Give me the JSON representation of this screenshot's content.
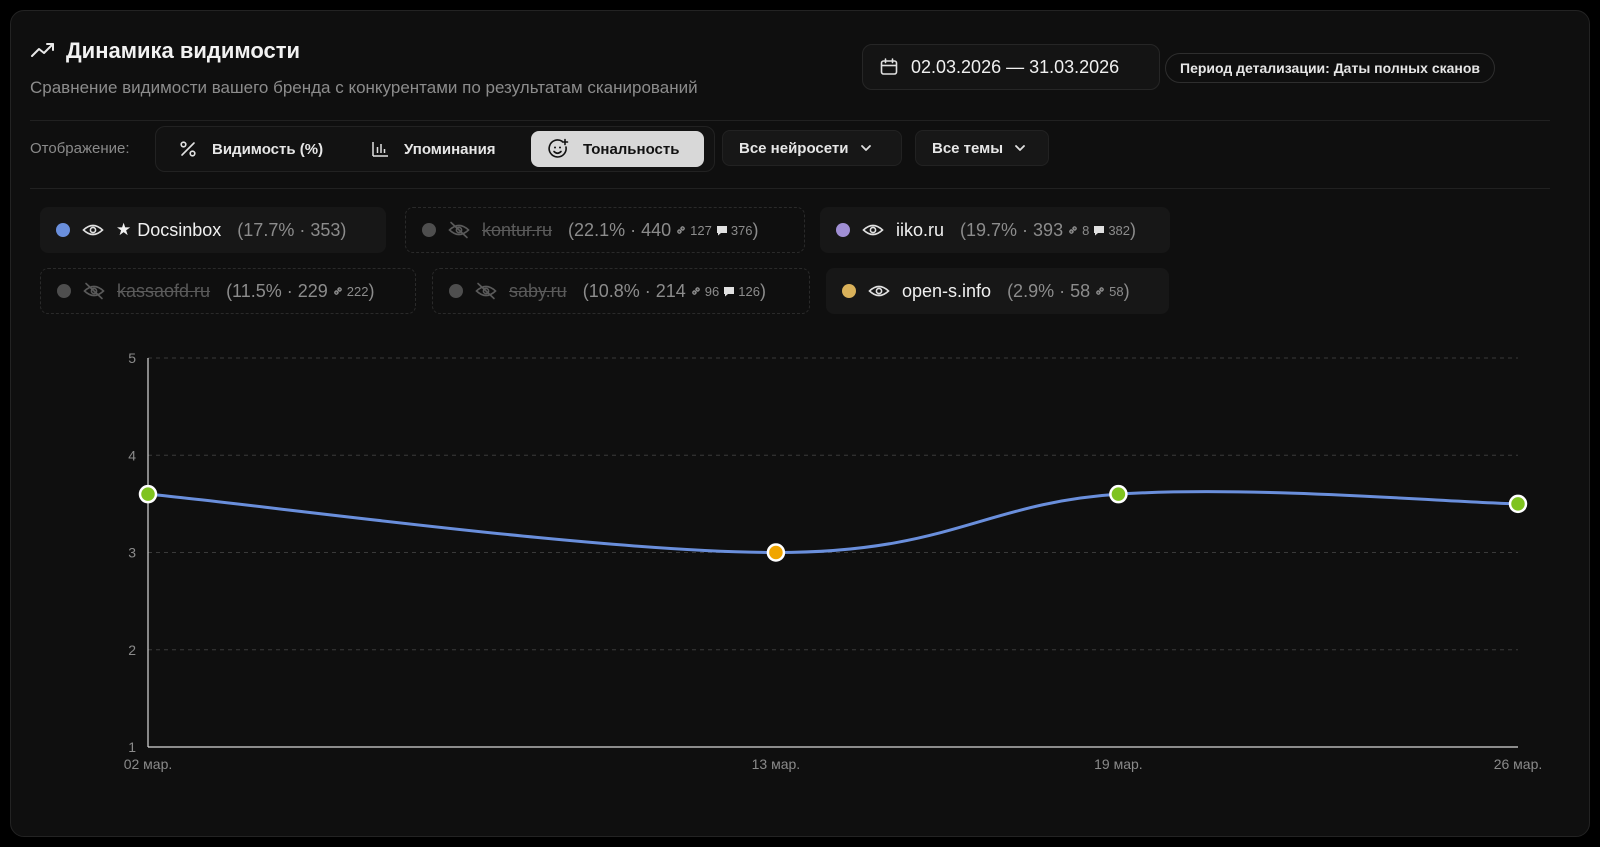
{
  "header": {
    "title": "Динамика видимости",
    "subtitle": "Сравнение видимости вашего бренда с конкурентами по результатам сканирований",
    "date_range": "02.03.2026 — 31.03.2026",
    "period": "Период детализации: Даты полных сканов"
  },
  "toolbar": {
    "display_label": "Отображение:",
    "modes": [
      {
        "label": "Видимость (%)",
        "icon": "percent-icon",
        "active": false
      },
      {
        "label": "Упоминания",
        "icon": "bar-chart-icon",
        "active": false
      },
      {
        "label": "Тональность",
        "icon": "smile-icon",
        "active": true
      }
    ],
    "networks_dropdown": "Все нейросети",
    "topics_dropdown": "Все темы"
  },
  "legend": [
    {
      "name": "Docsinbox",
      "stats": "(17.7% · 353)",
      "links": "",
      "comments": "",
      "color": "#6a8fdc",
      "visible": true,
      "starred": true
    },
    {
      "name": "kontur.ru",
      "stats": "(22.1% · 440",
      "links": "127",
      "comments": "376",
      "color": "#555555",
      "visible": false,
      "starred": false
    },
    {
      "name": "iiko.ru",
      "stats": "(19.7% · 393",
      "links": "8",
      "comments": "382",
      "color": "#a08fd4",
      "visible": true,
      "starred": false
    },
    {
      "name": "kassaofd.ru",
      "stats": "(11.5% · 229",
      "links": "222",
      "comments": "",
      "color": "#555555",
      "visible": false,
      "starred": false
    },
    {
      "name": "saby.ru",
      "stats": "(10.8% · 214",
      "links": "96",
      "comments": "126",
      "color": "#555555",
      "visible": false,
      "starred": false
    },
    {
      "name": "open-s.info",
      "stats": "(2.9% · 58",
      "links": "58",
      "comments": "",
      "color": "#d9b15a",
      "visible": true,
      "starred": false
    }
  ],
  "chart_data": {
    "type": "line",
    "categories": [
      "02 мар.",
      "13 мар.",
      "19 мар.",
      "26 мар."
    ],
    "series": [
      {
        "name": "Docsinbox",
        "values": [
          3.6,
          3.0,
          3.6,
          3.5
        ],
        "point_colors": [
          "#7fc31f",
          "#f0a500",
          "#7fc31f",
          "#7fc31f"
        ],
        "color": "#6a8fdc"
      }
    ],
    "ylim": [
      1,
      5
    ],
    "yticks": [
      "1",
      "2",
      "3",
      "4",
      "5"
    ],
    "grid": true
  }
}
